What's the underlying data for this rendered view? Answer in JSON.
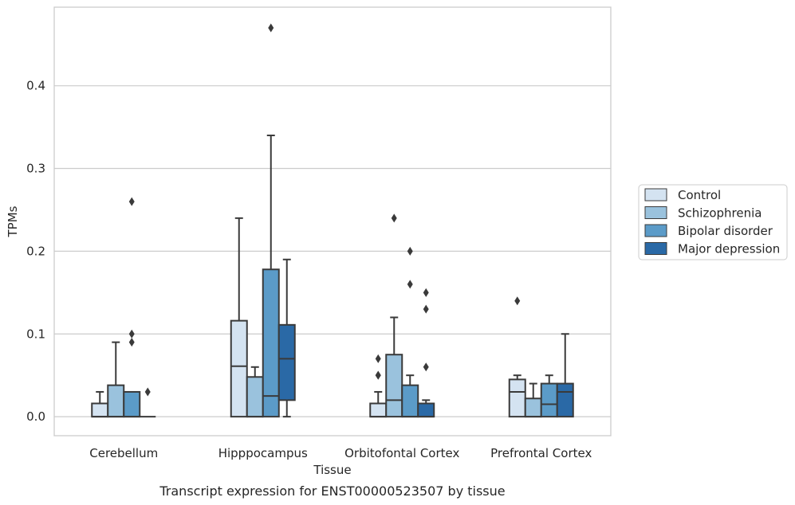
{
  "chart_data": {
    "type": "box",
    "xlabel": "Tissue",
    "ylabel": "TPMs",
    "caption": "Transcript expression for ENST00000523507 by tissue",
    "ylim": [
      -0.023,
      0.495
    ],
    "yticks": [
      "0.0",
      "0.1",
      "0.2",
      "0.3",
      "0.4"
    ],
    "ytick_values": [
      0.0,
      0.1,
      0.2,
      0.3,
      0.4
    ],
    "grid": "horizontal",
    "legend_position": "right",
    "categories": [
      "Cerebellum",
      "Hipppocampus",
      "Orbitofontal Cortex",
      "Prefrontal Cortex"
    ],
    "series": [
      {
        "name": "Control",
        "color": "#d4e3f1",
        "boxes": [
          {
            "min": 0.0,
            "q1": 0.0,
            "median": 0.0,
            "q3": 0.016,
            "max": 0.03,
            "outliers": []
          },
          {
            "min": 0.0,
            "q1": 0.0,
            "median": 0.061,
            "q3": 0.116,
            "max": 0.24,
            "outliers": []
          },
          {
            "min": 0.0,
            "q1": 0.0,
            "median": 0.0,
            "q3": 0.016,
            "max": 0.03,
            "outliers": [
              0.05,
              0.05,
              0.07
            ]
          },
          {
            "min": 0.0,
            "q1": 0.0,
            "median": 0.03,
            "q3": 0.045,
            "max": 0.05,
            "outliers": [
              0.14
            ]
          }
        ]
      },
      {
        "name": "Schizophrenia",
        "color": "#9ac2dd",
        "boxes": [
          {
            "min": 0.0,
            "q1": 0.0,
            "median": 0.0,
            "q3": 0.038,
            "max": 0.09,
            "outliers": []
          },
          {
            "min": 0.0,
            "q1": 0.0,
            "median": 0.0,
            "q3": 0.048,
            "max": 0.06,
            "outliers": []
          },
          {
            "min": 0.0,
            "q1": 0.0,
            "median": 0.02,
            "q3": 0.075,
            "max": 0.12,
            "outliers": [
              0.24
            ]
          },
          {
            "min": 0.0,
            "q1": 0.0,
            "median": 0.0,
            "q3": 0.022,
            "max": 0.04,
            "outliers": []
          }
        ]
      },
      {
        "name": "Bipolar disorder",
        "color": "#5b9bc8",
        "boxes": [
          {
            "min": 0.0,
            "q1": 0.0,
            "median": 0.0,
            "q3": 0.03,
            "max": 0.03,
            "outliers": [
              0.09,
              0.1,
              0.26
            ]
          },
          {
            "min": 0.0,
            "q1": 0.0,
            "median": 0.025,
            "q3": 0.178,
            "max": 0.34,
            "outliers": [
              0.47
            ]
          },
          {
            "min": 0.0,
            "q1": 0.0,
            "median": 0.0,
            "q3": 0.038,
            "max": 0.05,
            "outliers": [
              0.16,
              0.2
            ]
          },
          {
            "min": 0.0,
            "q1": 0.0,
            "median": 0.015,
            "q3": 0.04,
            "max": 0.05,
            "outliers": []
          }
        ]
      },
      {
        "name": "Major depression",
        "color": "#2a69a6",
        "boxes": [
          {
            "min": 0.0,
            "q1": 0.0,
            "median": 0.0,
            "q3": 0.0,
            "max": 0.0,
            "outliers": [
              0.03
            ]
          },
          {
            "min": 0.0,
            "q1": 0.02,
            "median": 0.07,
            "q3": 0.111,
            "max": 0.19,
            "outliers": []
          },
          {
            "min": 0.0,
            "q1": 0.0,
            "median": 0.0,
            "q3": 0.016,
            "max": 0.02,
            "outliers": [
              0.06,
              0.13,
              0.15
            ]
          },
          {
            "min": 0.0,
            "q1": 0.0,
            "median": 0.03,
            "q3": 0.04,
            "max": 0.1,
            "outliers": []
          }
        ]
      }
    ]
  }
}
